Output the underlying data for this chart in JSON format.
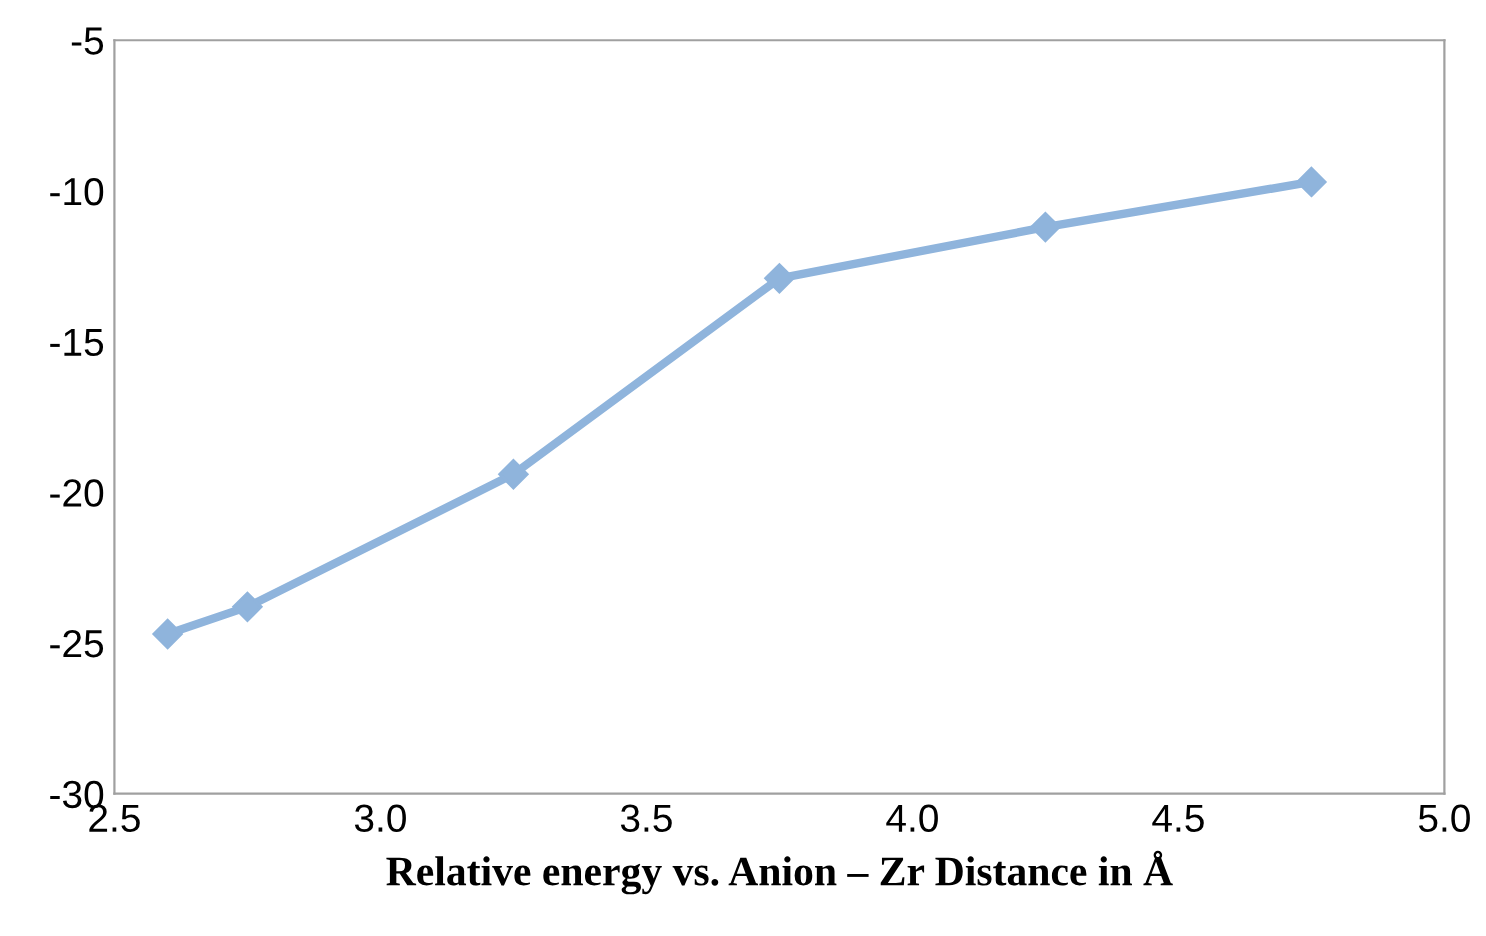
{
  "chart_data": {
    "type": "line",
    "xlabel": "Relative energy vs. Anion – Zr Distance in Å",
    "x": [
      2.6,
      2.75,
      3.25,
      3.75,
      4.25,
      4.75
    ],
    "series": [
      {
        "color": "#8fb4dc",
        "values": [
          -24.7,
          -23.8,
          -19.4,
          -12.9,
          -11.2,
          -9.7
        ]
      }
    ],
    "xlim": [
      2.5,
      5.0
    ],
    "xticks": [
      {
        "value": 2.5,
        "label": "2.5"
      },
      {
        "value": 3.0,
        "label": "3.0"
      },
      {
        "value": 3.5,
        "label": "3.5"
      },
      {
        "value": 4.0,
        "label": "4.0"
      },
      {
        "value": 4.5,
        "label": "4.5"
      },
      {
        "value": 5.0,
        "label": "5.0"
      }
    ],
    "ylim": [
      -30,
      -5
    ],
    "yticks": [
      -30,
      -25,
      -20,
      -15,
      -10,
      -5
    ],
    "grid": false,
    "marker": "diamond",
    "line_style": "solid"
  }
}
